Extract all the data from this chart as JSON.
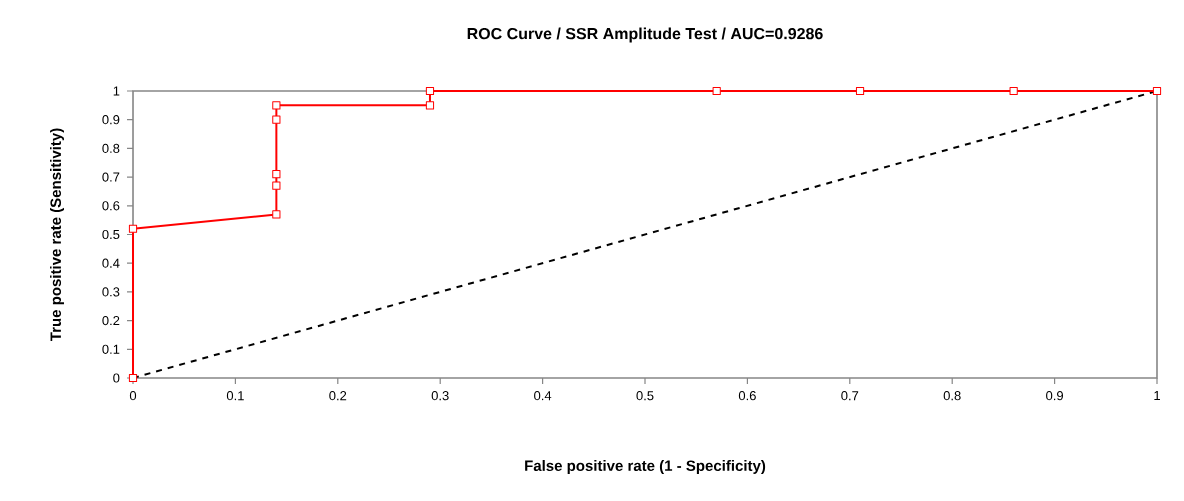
{
  "chart_data": {
    "type": "line",
    "title": "ROC Curve / SSR Amplitude Test / AUC=0.9286",
    "xlabel": "False positive rate (1 - Specificity)",
    "ylabel": "True positive rate (Sensitivity)",
    "xlim": [
      0,
      1
    ],
    "ylim": [
      0,
      1
    ],
    "xticks": [
      0,
      0.1,
      0.2,
      0.3,
      0.4,
      0.5,
      0.6,
      0.7,
      0.8,
      0.9,
      1
    ],
    "yticks": [
      0,
      0.1,
      0.2,
      0.3,
      0.4,
      0.5,
      0.6,
      0.7,
      0.8,
      0.9,
      1
    ],
    "grid": false,
    "series": [
      {
        "color": "#ff0000",
        "marker": "square",
        "line_style": "solid",
        "x": [
          0,
          0,
          0.14,
          0.14,
          0.14,
          0.14,
          0.14,
          0.29,
          0.29,
          0.57,
          0.71,
          0.86,
          1
        ],
        "values": [
          0,
          0.52,
          0.57,
          0.67,
          0.71,
          0.9,
          0.95,
          0.95,
          1,
          1,
          1,
          1,
          1
        ]
      },
      {
        "color": "#000000",
        "marker": "none",
        "line_style": "dashed",
        "x": [
          0,
          1
        ],
        "values": [
          0,
          1
        ]
      }
    ]
  }
}
